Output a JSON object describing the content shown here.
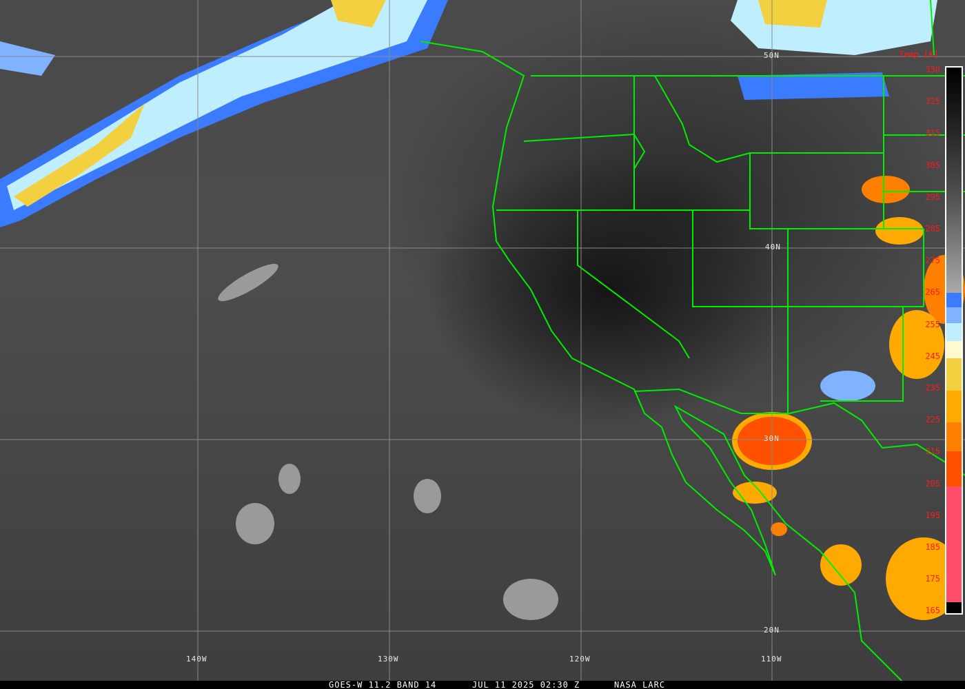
{
  "caption": {
    "satellite_band": "GOES-W 11.2 BAND 14",
    "datetime": "JUL 11 2025 02:30 Z",
    "source": "NASA LARC"
  },
  "colorbar": {
    "title": "Temp [K]",
    "ticks": [
      "330",
      "325",
      "315",
      "305",
      "295",
      "285",
      "275",
      "265",
      "255",
      "245",
      "235",
      "225",
      "215",
      "205",
      "195",
      "185",
      "175",
      "165"
    ],
    "colors": {
      "blue": "#3a7bff",
      "light_blue": "#7fb2ff",
      "pale_blue": "#bfefff",
      "cream": "#fffacd",
      "yellow": "#f2d040",
      "amber": "#ffaa00",
      "orange": "#ff8000",
      "red_orange": "#ff5000",
      "pink": "#ff4d6a"
    }
  },
  "grid": {
    "lat_labels": [
      "50N",
      "40N",
      "30N",
      "20N"
    ],
    "lon_labels": [
      "140W",
      "130W",
      "120W",
      "110W"
    ]
  },
  "border_color": "#00ee00"
}
